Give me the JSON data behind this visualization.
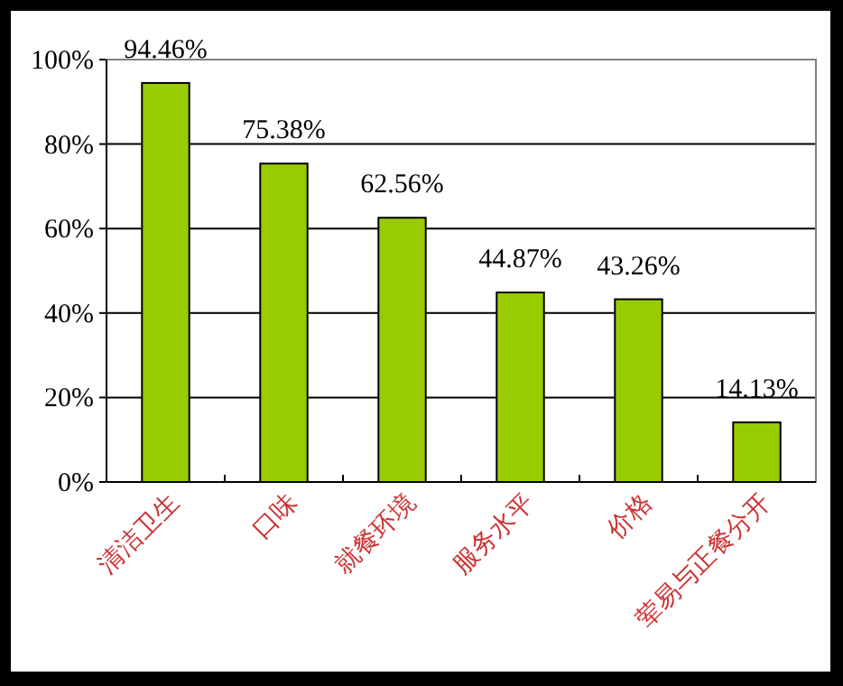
{
  "chart_data": {
    "type": "bar",
    "categories": [
      "清洁卫生",
      "口味",
      "就餐环境",
      "服务水平",
      "价格",
      "荤易与正餐分开"
    ],
    "values": [
      94.46,
      75.38,
      62.56,
      44.87,
      43.26,
      14.13
    ],
    "value_labels": [
      "94.46%",
      "75.38%",
      "62.56%",
      "44.87%",
      "43.26%",
      "14.13%"
    ],
    "color": "#99cc00",
    "ylim": [
      0,
      100
    ],
    "yticks": [
      {
        "value": 0,
        "label": "0%"
      },
      {
        "value": 20,
        "label": "20%"
      },
      {
        "value": 40,
        "label": "40%"
      },
      {
        "value": 60,
        "label": "60%"
      },
      {
        "value": 80,
        "label": "80%"
      },
      {
        "value": 100,
        "label": "100%"
      }
    ],
    "grid": "y"
  }
}
